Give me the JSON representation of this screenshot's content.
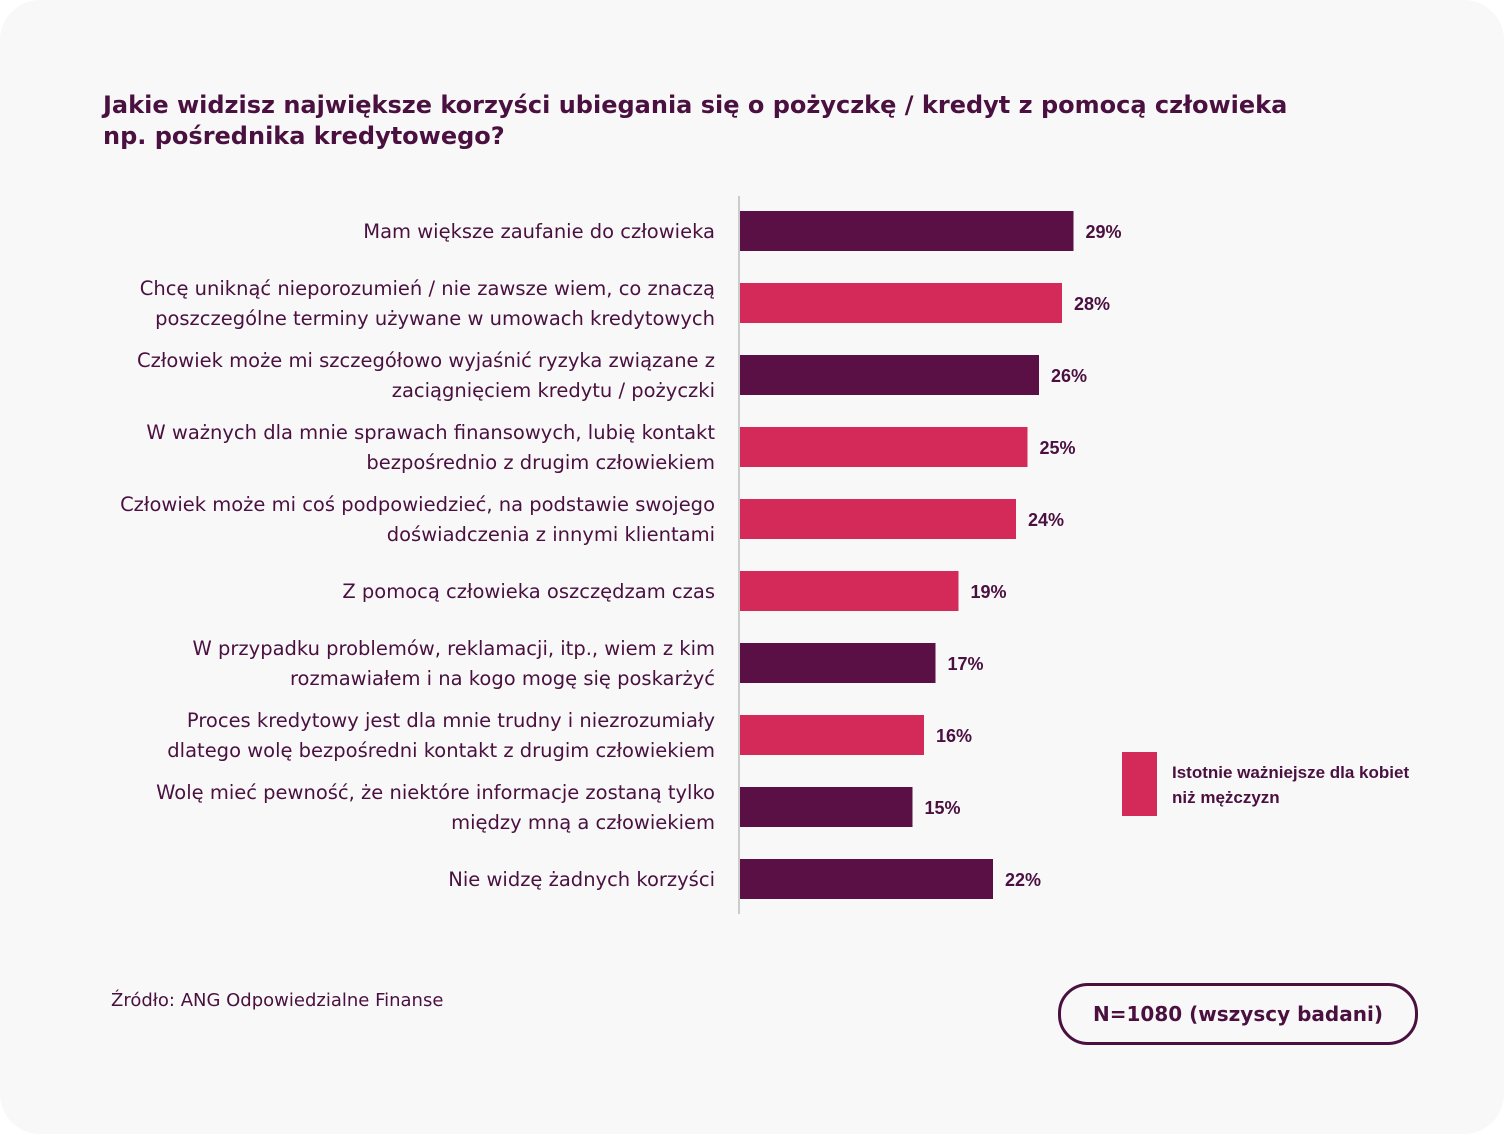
{
  "title_lines": [
    "Jakie widzisz największe korzyści ubiegania się o pożyczkę / kredyt z pomocą człowieka",
    "np. pośrednika kredytowego?"
  ],
  "colors": {
    "default_bar": "#5a1045",
    "highlight_bar": "#d42a5a",
    "text": "#4a1040",
    "axis": "#cccccc"
  },
  "chart_data": {
    "type": "bar",
    "orientation": "horizontal",
    "title": "Jakie widzisz największe korzyści ubiegania się o pożyczkę / kredyt z pomocą człowieka np. pośrednika kredytowego?",
    "categories": [
      "Mam większe zaufanie do człowieka",
      "Chcę uniknąć nieporozumień / nie zawsze wiem, co znaczą poszczególne terminy używane w umowach kredytowych",
      "Człowiek może mi szczegółowo wyjaśnić ryzyka związane z zaciągnięciem kredytu / pożyczki",
      "W ważnych dla mnie sprawach finansowych, lubię kontakt bezpośrednio z drugim człowiekiem",
      "Człowiek może mi coś podpowiedzieć, na podstawie swojego doświadczenia z innymi klientami",
      "Z pomocą człowieka  oszczędzam czas",
      "W przypadku problemów, reklamacji, itp., wiem z kim rozmawiałem i na kogo mogę się poskarżyć",
      "Proces kredytowy jest dla mnie trudny i niezrozumiały dlatego wolę bezpośredni kontakt z drugim człowiekiem",
      "Wolę mieć pewność, że niektóre informacje zostaną tylko między mną a człowiekiem",
      "Nie widzę żadnych korzyści"
    ],
    "category_lines": [
      [
        "Mam większe zaufanie do człowieka"
      ],
      [
        "Chcę uniknąć nieporozumień / nie zawsze wiem, co znaczą",
        "poszczególne terminy używane w umowach kredytowych"
      ],
      [
        "Człowiek może mi szczegółowo wyjaśnić ryzyka związane z",
        "zaciągnięciem kredytu / pożyczki"
      ],
      [
        "W ważnych dla mnie sprawach finansowych, lubię kontakt",
        "bezpośrednio z drugim człowiekiem"
      ],
      [
        "Człowiek może mi coś podpowiedzieć, na podstawie swojego",
        "doświadczenia z innymi klientami"
      ],
      [
        "Z pomocą człowieka  oszczędzam czas"
      ],
      [
        "W przypadku problemów, reklamacji, itp., wiem z kim",
        "rozmawiałem i na kogo mogę się poskarżyć"
      ],
      [
        "Proces kredytowy jest dla mnie trudny i niezrozumiały",
        "dlatego wolę bezpośredni kontakt z drugim człowiekiem"
      ],
      [
        "Wolę mieć pewność, że niektóre informacje zostaną tylko",
        "między mną a człowiekiem"
      ],
      [
        "Nie widzę żadnych korzyści"
      ]
    ],
    "values": [
      29,
      28,
      26,
      25,
      24,
      19,
      17,
      16,
      15,
      22
    ],
    "value_labels": [
      "29%",
      "28%",
      "26%",
      "25%",
      "24%",
      "19%",
      "17%",
      "16%",
      "15%",
      "22%"
    ],
    "highlighted": [
      false,
      true,
      false,
      true,
      true,
      true,
      false,
      true,
      false,
      false
    ],
    "unit": "%",
    "xlim": [
      0,
      100
    ],
    "grid": false
  },
  "legend": {
    "label_lines": [
      "Istotnie ważniejsze dla kobiet",
      "niż mężczyzn"
    ]
  },
  "source": "Źródło: ANG Odpowiedzialne Finanse",
  "sample_size": "N=1080 (wszyscy badani)"
}
